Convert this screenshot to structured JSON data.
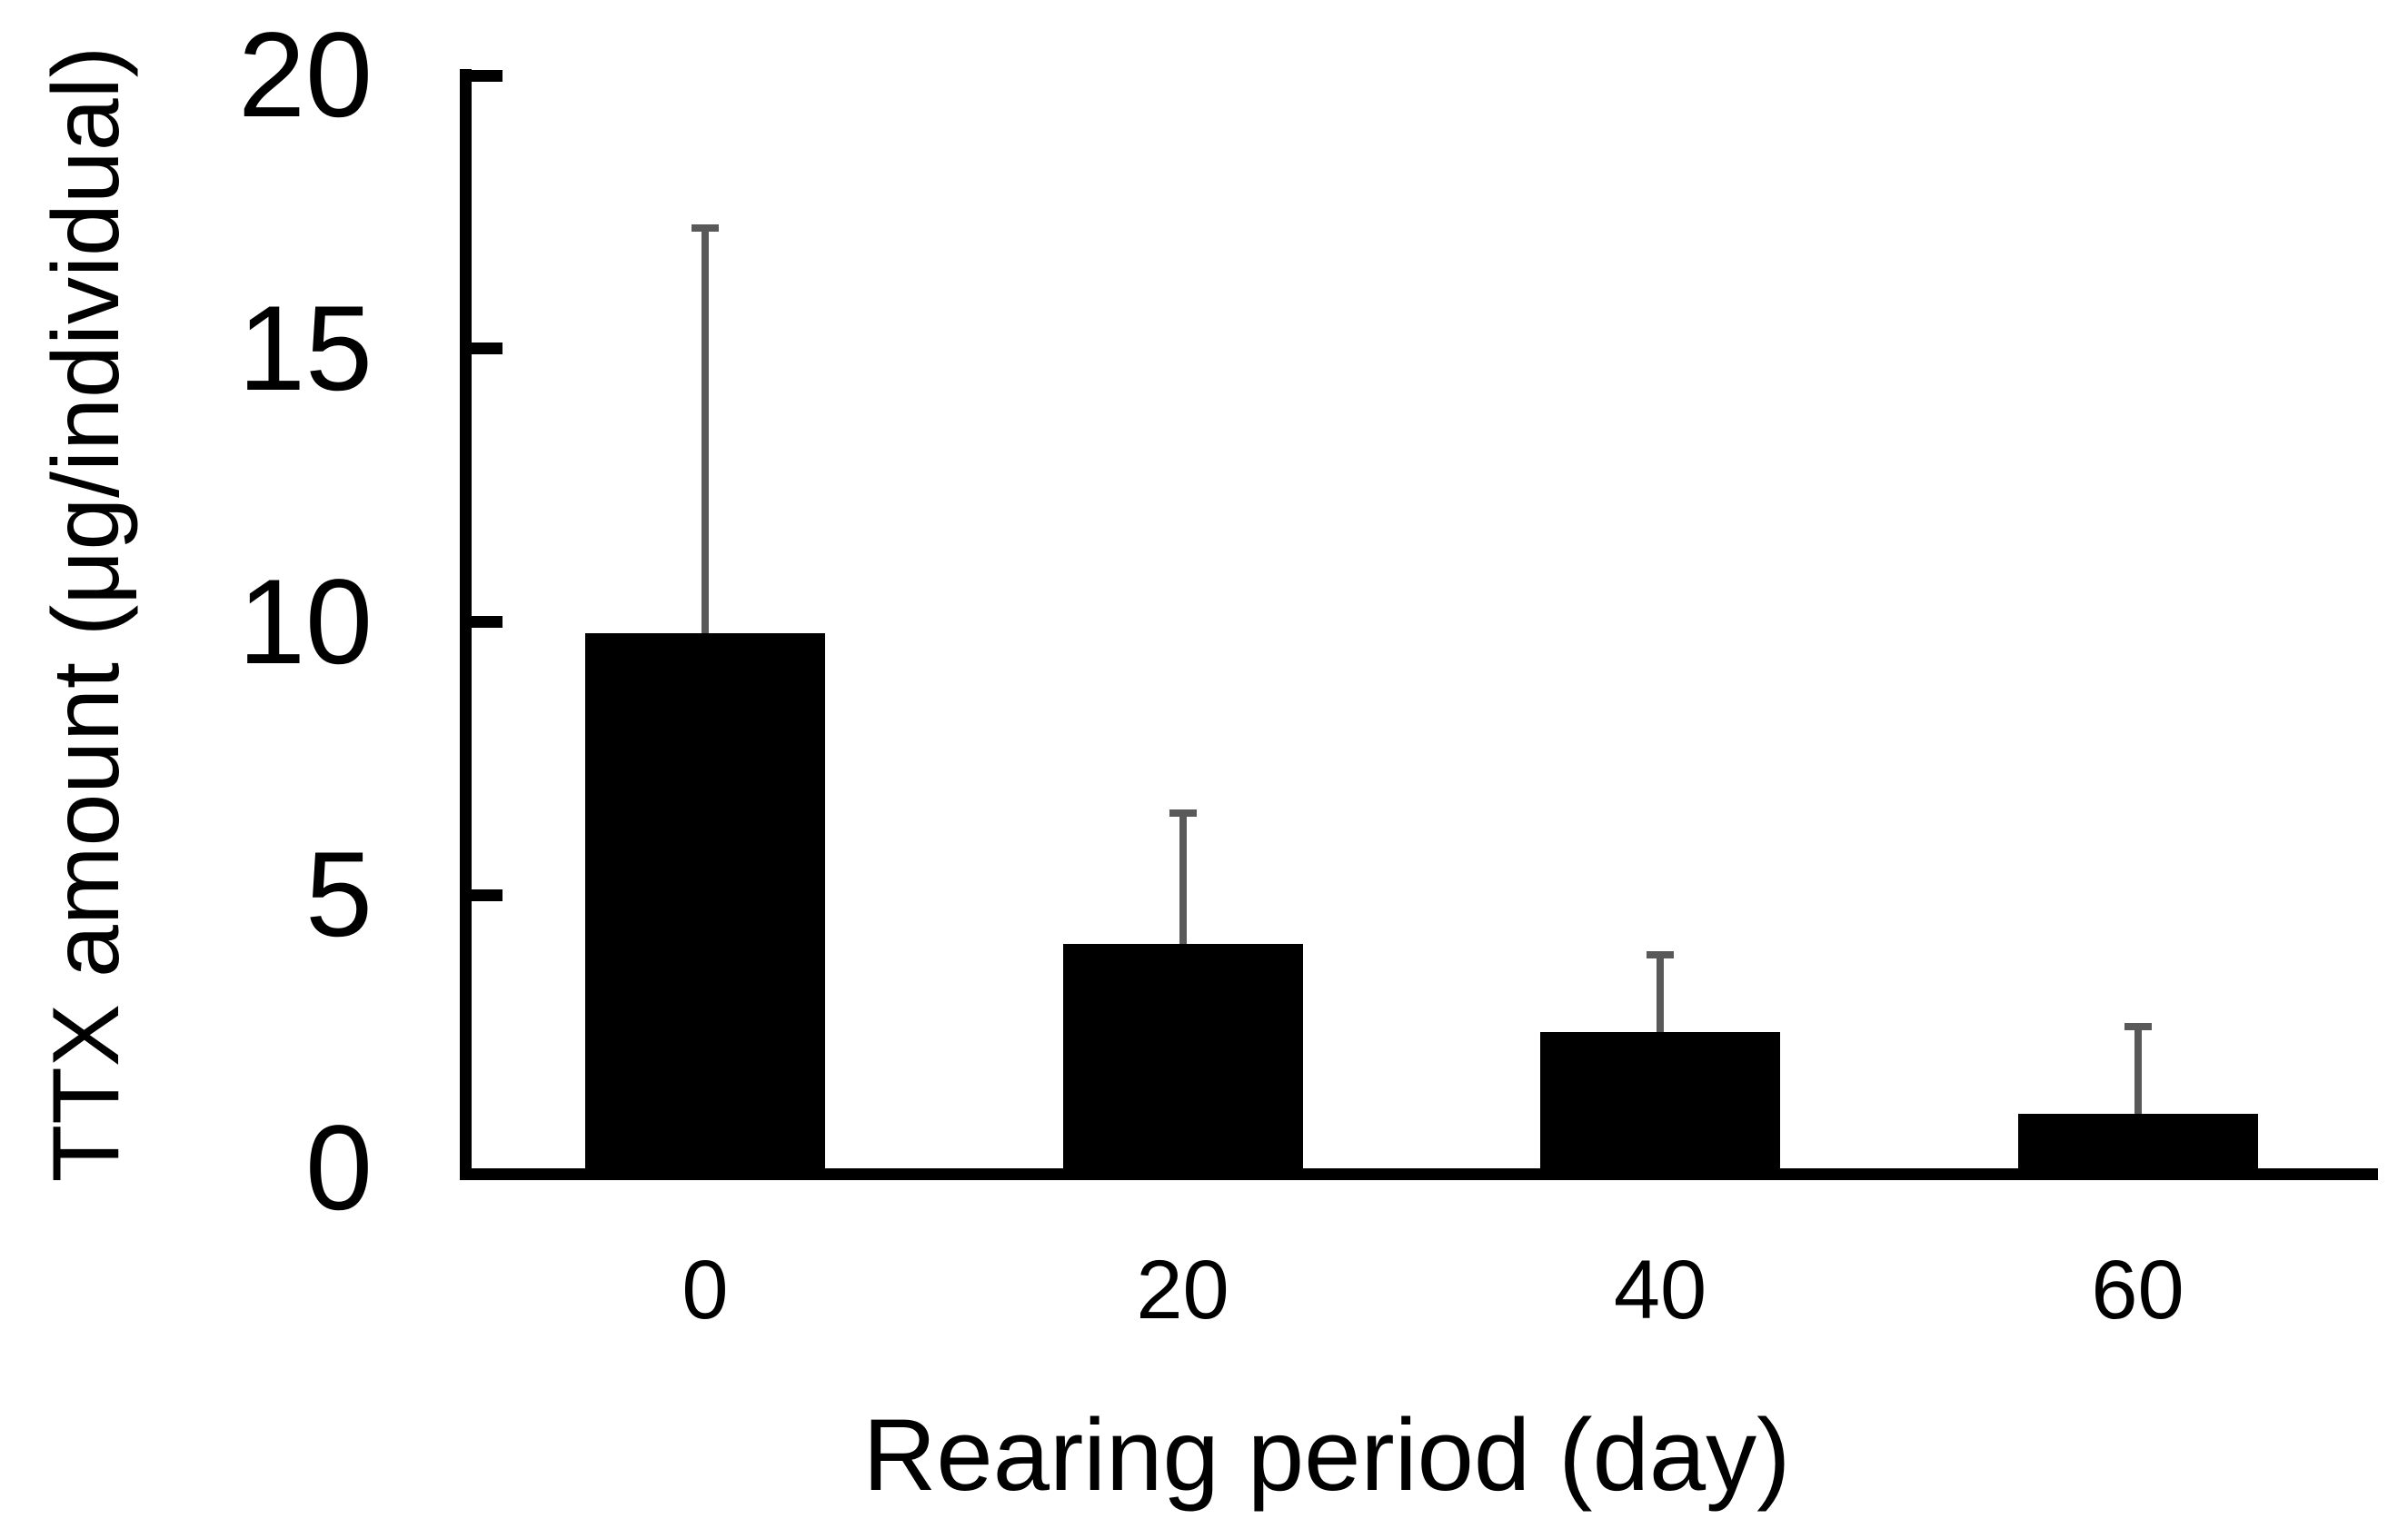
{
  "chart_data": {
    "type": "bar",
    "title": "",
    "xlabel": "Rearing period (day)",
    "ylabel": "TTX amount (μg/individual)",
    "categories": [
      "0",
      "20",
      "40",
      "60"
    ],
    "values": [
      9.8,
      4.1,
      2.5,
      1.0
    ],
    "error_plus": [
      7.4,
      2.4,
      1.4,
      1.6
    ],
    "error_bar_tops": [
      17.2,
      6.5,
      3.9,
      2.6
    ],
    "yticks": [
      20,
      15,
      10,
      5,
      0
    ],
    "ylim": [
      0,
      20
    ],
    "xlim_note": "category axis",
    "legend": "none",
    "grid": "off",
    "bar_color": "#000000",
    "error_bar_color": "#595959",
    "axis_color": "#000000",
    "background_color": "#ffffff"
  }
}
